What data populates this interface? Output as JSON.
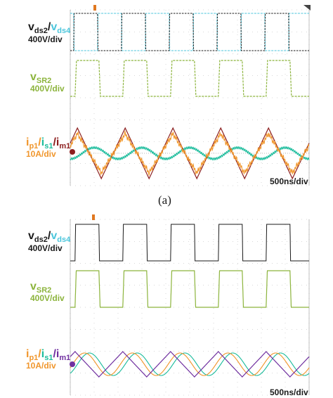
{
  "colors": {
    "black": "#1a1a1a",
    "cyan": "#4cc6dc",
    "green": "#8cb43c",
    "orange": "#f0962c",
    "teal": "#1bbc9c",
    "darkred": "#8c1e1e",
    "purple": "#7030a0",
    "grid": "#b0b0b0"
  },
  "panel_a": {
    "caption": "(a)",
    "timebase": "500ns/div",
    "labels": {
      "vds2": "v",
      "vds2_sub": "ds2",
      "slash1": "/",
      "vds4": "v",
      "vds4_sub": "ds4",
      "vds_scale": "400V/div",
      "vsr2": "v",
      "vsr2_sub": "SR2",
      "vsr2_scale": "400V/div",
      "ip1": "i",
      "ip1_sub": "p1",
      "slash2": "/",
      "is1": "i",
      "is1_sub": "s1",
      "slash3": "/",
      "im1": "i",
      "im1_sub": "m1",
      "i_scale": "10A/div"
    }
  },
  "panel_b": {
    "timebase": "500ns/div",
    "labels": {
      "vds2": "v",
      "vds2_sub": "ds2",
      "slash1": "/",
      "vds4": "v",
      "vds4_sub": "ds4",
      "vds_scale": "400V/div",
      "vsr2": "v",
      "vsr2_sub": "SR2",
      "vsr2_scale": "400V/div",
      "ip1": "i",
      "ip1_sub": "p1",
      "slash2": "/",
      "is1": "i",
      "is1_sub": "s1",
      "slash3": "/",
      "im1": "i",
      "im1_sub": "m1",
      "i_scale": "10A/div"
    }
  },
  "chart_data": [
    {
      "type": "line",
      "panel": "a",
      "x_unit": "ns",
      "x_division": 500,
      "x_divisions": 10,
      "period_ns": 1000,
      "series": [
        {
          "trace": "v_ds2",
          "color": "black",
          "shape": "square",
          "high_from_ns": 70,
          "high_to_ns": 570,
          "repeat_ns": 1000
        },
        {
          "trace": "v_ds4",
          "color": "cyan",
          "shape": "square",
          "high_from_ns": 570,
          "high_to_ns": 1070,
          "repeat_ns": 1000
        },
        {
          "trace": "v_SR2",
          "color": "green",
          "shape": "square",
          "high_from_ns": 100,
          "high_to_ns": 600,
          "repeat_ns": 1000
        },
        {
          "trace": "i_p1",
          "color": "orange",
          "shape": "triangle-ripple",
          "peak_A": 12,
          "repeat_ns": 1000
        },
        {
          "trace": "i_s1",
          "color": "teal",
          "shape": "ripple",
          "peak_A": 5,
          "repeat_ns": 1000
        },
        {
          "trace": "i_m1",
          "color": "darkred",
          "shape": "triangle",
          "peak_A": 14,
          "repeat_ns": 1000
        }
      ]
    },
    {
      "type": "line",
      "panel": "b",
      "x_unit": "ns",
      "x_division": 500,
      "x_divisions": 10,
      "period_ns": 1000,
      "series": [
        {
          "trace": "v_ds2",
          "color": "black",
          "shape": "square",
          "high_from_ns": 100,
          "high_to_ns": 600,
          "repeat_ns": 1000
        },
        {
          "trace": "v_SR2",
          "color": "green",
          "shape": "square",
          "high_from_ns": 100,
          "high_to_ns": 600,
          "repeat_ns": 1000
        },
        {
          "trace": "i_p1",
          "color": "orange",
          "shape": "sine",
          "peak_A": 7,
          "repeat_ns": 1000
        },
        {
          "trace": "i_s1",
          "color": "teal",
          "shape": "sine",
          "peak_A": 7,
          "repeat_ns": 1000
        },
        {
          "trace": "i_m1",
          "color": "purple",
          "shape": "triangle",
          "peak_A": 8,
          "repeat_ns": 1000
        }
      ]
    }
  ]
}
